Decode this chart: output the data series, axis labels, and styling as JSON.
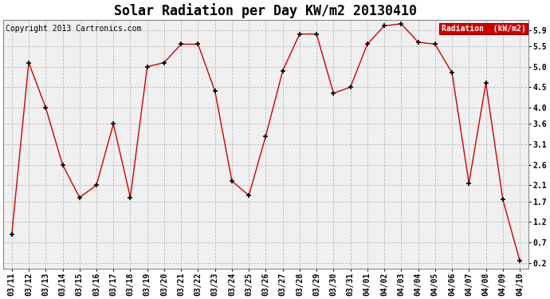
{
  "title": "Solar Radiation per Day KW/m2 20130410",
  "copyright": "Copyright 2013 Cartronics.com",
  "legend_label": "Radiation  (kW/m2)",
  "dates": [
    "03/11",
    "03/12",
    "03/13",
    "03/14",
    "03/15",
    "03/16",
    "03/17",
    "03/18",
    "03/19",
    "03/20",
    "03/21",
    "03/22",
    "03/23",
    "03/24",
    "03/25",
    "03/26",
    "03/27",
    "03/28",
    "03/29",
    "03/30",
    "03/31",
    "04/01",
    "04/02",
    "04/03",
    "04/04",
    "04/05",
    "04/06",
    "04/07",
    "04/08",
    "04/09",
    "04/10"
  ],
  "values": [
    0.9,
    5.1,
    4.0,
    2.6,
    1.8,
    2.1,
    3.6,
    1.8,
    5.0,
    5.1,
    5.55,
    5.55,
    4.4,
    2.2,
    1.85,
    3.3,
    4.9,
    5.8,
    5.8,
    4.35,
    4.5,
    5.55,
    6.0,
    6.05,
    5.6,
    5.55,
    4.85,
    2.15,
    4.6,
    1.75,
    0.25
  ],
  "yticks": [
    0.2,
    0.7,
    1.2,
    1.7,
    2.1,
    2.6,
    3.1,
    3.6,
    4.0,
    4.5,
    5.0,
    5.5,
    5.9
  ],
  "ylim": [
    0.05,
    6.15
  ],
  "line_color": "#cc0000",
  "marker_color": "#000000",
  "bg_color": "#ffffff",
  "plot_bg_color": "#f0f0f0",
  "legend_bg": "#cc0000",
  "legend_text_color": "#ffffff",
  "title_fontsize": 12,
  "copyright_fontsize": 7,
  "tick_fontsize": 7,
  "grid_color": "#bbbbbb",
  "grid_style": "--"
}
